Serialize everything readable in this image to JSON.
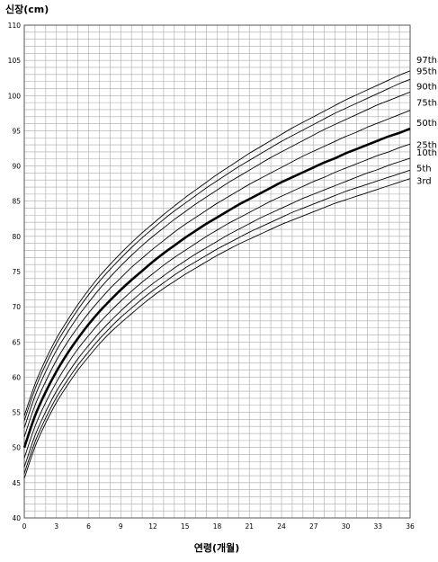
{
  "chart_data": {
    "type": "line",
    "title": "",
    "ylabel": "신장(cm)",
    "xlabel": "연령(개월)",
    "xlim": [
      0,
      36
    ],
    "ylim": [
      40,
      110
    ],
    "x_ticks": [
      0,
      3,
      6,
      9,
      12,
      15,
      18,
      21,
      24,
      27,
      30,
      33,
      36
    ],
    "y_ticks": [
      40,
      45,
      50,
      55,
      60,
      65,
      70,
      75,
      80,
      85,
      90,
      95,
      100,
      105,
      110
    ],
    "grid": true,
    "x": [
      0,
      1,
      2,
      3,
      4,
      5,
      6,
      7,
      8,
      9,
      10,
      11,
      12,
      13,
      14,
      15,
      16,
      17,
      18,
      19,
      20,
      21,
      22,
      23,
      24,
      25,
      26,
      27,
      28,
      29,
      30,
      31,
      32,
      33,
      34,
      35,
      36
    ],
    "series": [
      {
        "name": "97th",
        "bold": false,
        "values": [
          54.5,
          59.0,
          62.5,
          65.5,
          68.0,
          70.3,
          72.4,
          74.3,
          76.0,
          77.6,
          79.1,
          80.5,
          81.8,
          83.1,
          84.3,
          85.5,
          86.6,
          87.7,
          88.8,
          89.8,
          90.8,
          91.8,
          92.7,
          93.6,
          94.5,
          95.4,
          96.2,
          97.0,
          97.8,
          98.6,
          99.4,
          100.1,
          100.8,
          101.5,
          102.2,
          102.9,
          103.5
        ]
      },
      {
        "name": "95th",
        "bold": false,
        "values": [
          53.8,
          58.3,
          61.8,
          64.8,
          67.3,
          69.6,
          71.7,
          73.6,
          75.3,
          76.9,
          78.4,
          79.8,
          81.1,
          82.4,
          83.6,
          84.7,
          85.8,
          86.9,
          87.9,
          88.9,
          89.9,
          90.8,
          91.7,
          92.6,
          93.5,
          94.3,
          95.1,
          95.9,
          96.7,
          97.5,
          98.2,
          98.9,
          99.6,
          100.3,
          101.0,
          101.7,
          102.3
        ]
      },
      {
        "name": "90th",
        "bold": false,
        "values": [
          52.8,
          57.3,
          60.8,
          63.8,
          66.3,
          68.6,
          70.6,
          72.5,
          74.2,
          75.8,
          77.3,
          78.7,
          80.0,
          81.2,
          82.4,
          83.5,
          84.6,
          85.6,
          86.6,
          87.6,
          88.5,
          89.4,
          90.3,
          91.2,
          92.0,
          92.8,
          93.6,
          94.4,
          95.2,
          95.9,
          96.6,
          97.3,
          98.0,
          98.7,
          99.3,
          99.9,
          100.5
        ]
      },
      {
        "name": "75th",
        "bold": false,
        "values": [
          51.5,
          56.0,
          59.4,
          62.4,
          64.9,
          67.1,
          69.1,
          70.9,
          72.6,
          74.1,
          75.6,
          76.9,
          78.2,
          79.4,
          80.6,
          81.7,
          82.7,
          83.7,
          84.7,
          85.6,
          86.5,
          87.4,
          88.2,
          89.0,
          89.8,
          90.6,
          91.4,
          92.1,
          92.8,
          93.5,
          94.2,
          94.8,
          95.5,
          96.1,
          96.7,
          97.3,
          97.9
        ]
      },
      {
        "name": "50th",
        "bold": true,
        "values": [
          50.0,
          54.5,
          57.9,
          60.8,
          63.3,
          65.5,
          67.5,
          69.3,
          70.9,
          72.4,
          73.8,
          75.1,
          76.4,
          77.6,
          78.7,
          79.8,
          80.8,
          81.8,
          82.7,
          83.6,
          84.5,
          85.3,
          86.1,
          86.9,
          87.7,
          88.4,
          89.1,
          89.8,
          90.5,
          91.1,
          91.8,
          92.4,
          93.0,
          93.6,
          94.2,
          94.7,
          95.3
        ]
      },
      {
        "name": "25th",
        "bold": false,
        "values": [
          48.5,
          53.0,
          56.4,
          59.3,
          61.8,
          64.0,
          65.9,
          67.7,
          69.3,
          70.8,
          72.2,
          73.5,
          74.7,
          75.9,
          77.0,
          78.0,
          79.0,
          80.0,
          80.9,
          81.8,
          82.6,
          83.4,
          84.2,
          85.0,
          85.7,
          86.4,
          87.1,
          87.8,
          88.4,
          89.1,
          89.7,
          90.3,
          90.9,
          91.5,
          92.0,
          92.6,
          93.1
        ]
      },
      {
        "name": "10th",
        "bold": false,
        "values": [
          47.2,
          51.7,
          55.1,
          58.0,
          60.4,
          62.6,
          64.5,
          66.3,
          67.9,
          69.4,
          70.8,
          72.1,
          73.3,
          74.4,
          75.5,
          76.5,
          77.5,
          78.4,
          79.3,
          80.2,
          81.0,
          81.8,
          82.6,
          83.3,
          84.0,
          84.7,
          85.4,
          86.0,
          86.6,
          87.2,
          87.8,
          88.4,
          89.0,
          89.5,
          90.1,
          90.6,
          91.1
        ]
      },
      {
        "name": "5th",
        "bold": false,
        "values": [
          46.3,
          50.8,
          54.2,
          57.1,
          59.5,
          61.7,
          63.6,
          65.4,
          67.0,
          68.5,
          69.8,
          71.1,
          72.3,
          73.4,
          74.5,
          75.5,
          76.4,
          77.3,
          78.2,
          79.0,
          79.8,
          80.6,
          81.3,
          82.0,
          82.7,
          83.4,
          84.0,
          84.6,
          85.2,
          85.8,
          86.4,
          86.9,
          87.4,
          87.9,
          88.4,
          88.9,
          89.4
        ]
      },
      {
        "name": "3rd",
        "bold": false,
        "values": [
          45.6,
          50.1,
          53.5,
          56.4,
          58.8,
          61.0,
          62.9,
          64.7,
          66.3,
          67.7,
          69.0,
          70.3,
          71.5,
          72.6,
          73.6,
          74.6,
          75.5,
          76.4,
          77.3,
          78.1,
          78.9,
          79.6,
          80.3,
          81.0,
          81.7,
          82.3,
          82.9,
          83.5,
          84.1,
          84.7,
          85.2,
          85.7,
          86.2,
          86.7,
          87.2,
          87.7,
          88.2
        ]
      }
    ]
  }
}
